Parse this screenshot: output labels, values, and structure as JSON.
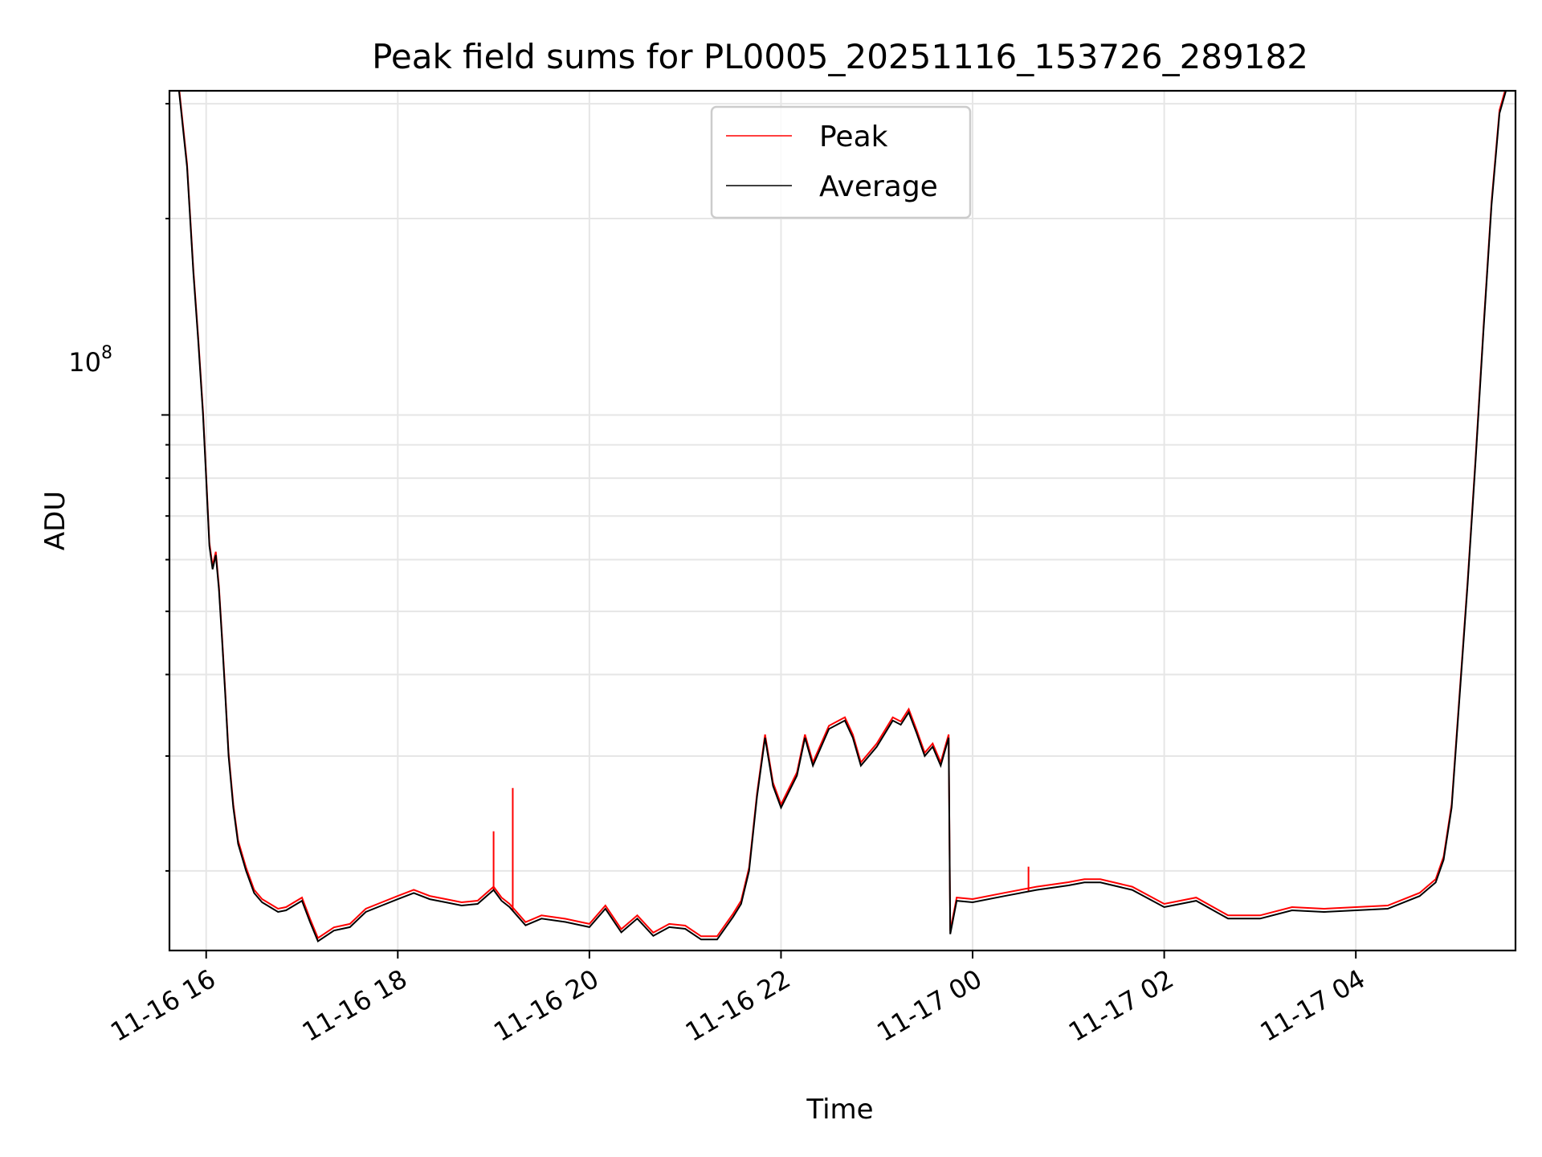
{
  "chart_data": {
    "type": "line",
    "title": "Peak field sums for PL0005_20251116_153726_289182",
    "xlabel": "Time",
    "ylabel": "ADU",
    "y_scale": "log",
    "y_tick_label_base": "10",
    "y_tick_label_exp": "8",
    "y_tick_value": 100000000,
    "ylim": [
      15100000,
      314000000
    ],
    "xlim": [
      "2025-11-16 15:37",
      "2025-11-17 05:40"
    ],
    "grid": true,
    "legend_position": "top-center",
    "x_tick_labels": [
      "11-16 16",
      "11-16 18",
      "11-16 20",
      "11-16 22",
      "11-17 00",
      "11-17 02",
      "11-17 04"
    ],
    "x_tick_times": [
      "2025-11-16 16:00",
      "2025-11-16 18:00",
      "2025-11-16 20:00",
      "2025-11-16 22:00",
      "2025-11-17 00:00",
      "2025-11-17 02:00",
      "2025-11-17 04:00"
    ],
    "series": [
      {
        "name": "Peak",
        "color": "#ff0000",
        "spikes": [
          {
            "x": "2025-11-16 19:00",
            "y": 23000000
          },
          {
            "x": "2025-11-16 19:12",
            "y": 26800000
          },
          {
            "x": "2025-11-17 00:35",
            "y": 20300000
          }
        ]
      },
      {
        "name": "Average",
        "color": "#000000",
        "x": [
          "2025-11-16 15:43",
          "2025-11-16 15:48",
          "2025-11-16 15:52",
          "2025-11-16 15:55",
          "2025-11-16 15:58",
          "2025-11-16 16:00",
          "2025-11-16 16:02",
          "2025-11-16 16:04",
          "2025-11-16 16:06",
          "2025-11-16 16:08",
          "2025-11-16 16:10",
          "2025-11-16 16:12",
          "2025-11-16 16:14",
          "2025-11-16 16:17",
          "2025-11-16 16:20",
          "2025-11-16 16:25",
          "2025-11-16 16:30",
          "2025-11-16 16:35",
          "2025-11-16 16:40",
          "2025-11-16 16:45",
          "2025-11-16 16:50",
          "2025-11-16 17:00",
          "2025-11-16 17:05",
          "2025-11-16 17:10",
          "2025-11-16 17:20",
          "2025-11-16 17:30",
          "2025-11-16 17:40",
          "2025-11-16 17:50",
          "2025-11-16 18:00",
          "2025-11-16 18:10",
          "2025-11-16 18:20",
          "2025-11-16 18:30",
          "2025-11-16 18:40",
          "2025-11-16 18:50",
          "2025-11-16 19:00",
          "2025-11-16 19:05",
          "2025-11-16 19:10",
          "2025-11-16 19:20",
          "2025-11-16 19:30",
          "2025-11-16 19:45",
          "2025-11-16 20:00",
          "2025-11-16 20:10",
          "2025-11-16 20:20",
          "2025-11-16 20:30",
          "2025-11-16 20:40",
          "2025-11-16 20:50",
          "2025-11-16 21:00",
          "2025-11-16 21:10",
          "2025-11-16 21:20",
          "2025-11-16 21:30",
          "2025-11-16 21:35",
          "2025-11-16 21:40",
          "2025-11-16 21:45",
          "2025-11-16 21:50",
          "2025-11-16 21:55",
          "2025-11-16 22:00",
          "2025-11-16 22:10",
          "2025-11-16 22:15",
          "2025-11-16 22:20",
          "2025-11-16 22:30",
          "2025-11-16 22:40",
          "2025-11-16 22:45",
          "2025-11-16 22:50",
          "2025-11-16 23:00",
          "2025-11-16 23:10",
          "2025-11-16 23:15",
          "2025-11-16 23:20",
          "2025-11-16 23:25",
          "2025-11-16 23:30",
          "2025-11-16 23:35",
          "2025-11-16 23:40",
          "2025-11-16 23:45",
          "2025-11-16 23:46",
          "2025-11-16 23:50",
          "2025-11-17 00:00",
          "2025-11-17 00:20",
          "2025-11-17 00:40",
          "2025-11-17 01:00",
          "2025-11-17 01:10",
          "2025-11-17 01:20",
          "2025-11-17 01:40",
          "2025-11-17 02:00",
          "2025-11-17 02:20",
          "2025-11-17 02:40",
          "2025-11-17 03:00",
          "2025-11-17 03:20",
          "2025-11-17 03:40",
          "2025-11-17 04:00",
          "2025-11-17 04:20",
          "2025-11-17 04:40",
          "2025-11-17 04:50",
          "2025-11-17 04:55",
          "2025-11-17 05:00",
          "2025-11-17 05:05",
          "2025-11-17 05:10",
          "2025-11-17 05:15",
          "2025-11-17 05:20",
          "2025-11-17 05:25",
          "2025-11-17 05:30",
          "2025-11-17 05:34"
        ],
        "values": [
          314000000,
          240000000,
          165000000,
          130000000,
          100000000,
          80000000,
          63000000,
          58000000,
          61000000,
          54000000,
          45000000,
          37000000,
          30000000,
          25000000,
          22000000,
          20000000,
          18500000,
          17900000,
          17600000,
          17300000,
          17400000,
          18000000,
          16700000,
          15600000,
          16200000,
          16400000,
          17300000,
          17700000,
          18100000,
          18500000,
          18100000,
          17900000,
          17700000,
          17800000,
          18700000,
          18000000,
          17600000,
          16500000,
          16900000,
          16700000,
          16400000,
          17500000,
          16100000,
          16900000,
          15900000,
          16400000,
          16300000,
          15700000,
          15700000,
          17000000,
          17800000,
          20000000,
          26000000,
          32000000,
          27000000,
          25000000,
          28000000,
          32000000,
          29000000,
          33000000,
          34000000,
          32000000,
          29000000,
          31000000,
          34000000,
          33500000,
          35000000,
          32500000,
          30000000,
          31000000,
          29000000,
          32000000,
          16000000,
          18000000,
          17900000,
          18300000,
          18700000,
          19000000,
          19200000,
          19200000,
          18700000,
          17600000,
          18000000,
          16900000,
          16900000,
          17400000,
          17300000,
          17400000,
          17500000,
          18300000,
          19200000,
          20800000,
          25000000,
          37000000,
          55000000,
          85000000,
          135000000,
          210000000,
          290000000,
          314000000
        ]
      }
    ]
  }
}
